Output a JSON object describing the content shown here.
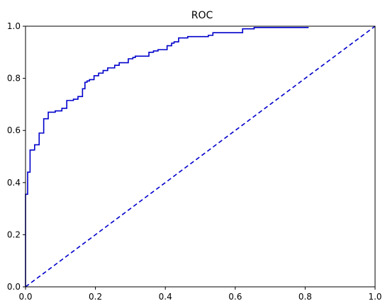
{
  "chart_data": {
    "type": "line",
    "title": "ROC",
    "xlabel": "",
    "ylabel": "",
    "xlim": [
      0,
      1
    ],
    "ylim": [
      0,
      1
    ],
    "xticks": [
      "0.0",
      "0.2",
      "0.4",
      "0.6",
      "0.8",
      "1.0"
    ],
    "yticks": [
      "0.0",
      "0.2",
      "0.4",
      "0.6",
      "0.8",
      "1.0"
    ],
    "grid": false,
    "legend": "none",
    "color": "#0000cc",
    "series": [
      {
        "style": "solid-step",
        "x": [
          0.0,
          0.0,
          0.006,
          0.006,
          0.013,
          0.013,
          0.026,
          0.026,
          0.039,
          0.039,
          0.052,
          0.052,
          0.065,
          0.065,
          0.085,
          0.085,
          0.104,
          0.104,
          0.118,
          0.118,
          0.137,
          0.137,
          0.15,
          0.15,
          0.163,
          0.163,
          0.17,
          0.17,
          0.176,
          0.176,
          0.183,
          0.183,
          0.196,
          0.196,
          0.209,
          0.209,
          0.222,
          0.222,
          0.235,
          0.235,
          0.255,
          0.255,
          0.268,
          0.268,
          0.294,
          0.294,
          0.307,
          0.307,
          0.314,
          0.314,
          0.353,
          0.353,
          0.366,
          0.366,
          0.379,
          0.379,
          0.405,
          0.405,
          0.418,
          0.418,
          0.425,
          0.425,
          0.438,
          0.438,
          0.464,
          0.464,
          0.523,
          0.523,
          0.536,
          0.536,
          0.621,
          0.621,
          0.654,
          0.654,
          0.68,
          0.68,
          0.81
        ],
        "y": [
          0.0,
          0.355,
          0.355,
          0.44,
          0.44,
          0.525,
          0.525,
          0.545,
          0.545,
          0.59,
          0.59,
          0.645,
          0.645,
          0.67,
          0.67,
          0.675,
          0.675,
          0.685,
          0.685,
          0.715,
          0.715,
          0.72,
          0.72,
          0.73,
          0.73,
          0.76,
          0.76,
          0.785,
          0.785,
          0.79,
          0.79,
          0.795,
          0.795,
          0.81,
          0.81,
          0.82,
          0.82,
          0.83,
          0.83,
          0.84,
          0.84,
          0.85,
          0.85,
          0.86,
          0.86,
          0.875,
          0.875,
          0.88,
          0.88,
          0.885,
          0.885,
          0.9,
          0.9,
          0.905,
          0.905,
          0.91,
          0.91,
          0.925,
          0.925,
          0.935,
          0.935,
          0.94,
          0.94,
          0.955,
          0.955,
          0.96,
          0.96,
          0.965,
          0.965,
          0.975,
          0.975,
          0.99,
          0.99,
          0.995,
          0.995,
          0.995,
          0.995
        ]
      },
      {
        "style": "dashed",
        "x": [
          0,
          1
        ],
        "y": [
          0,
          1
        ]
      }
    ]
  }
}
